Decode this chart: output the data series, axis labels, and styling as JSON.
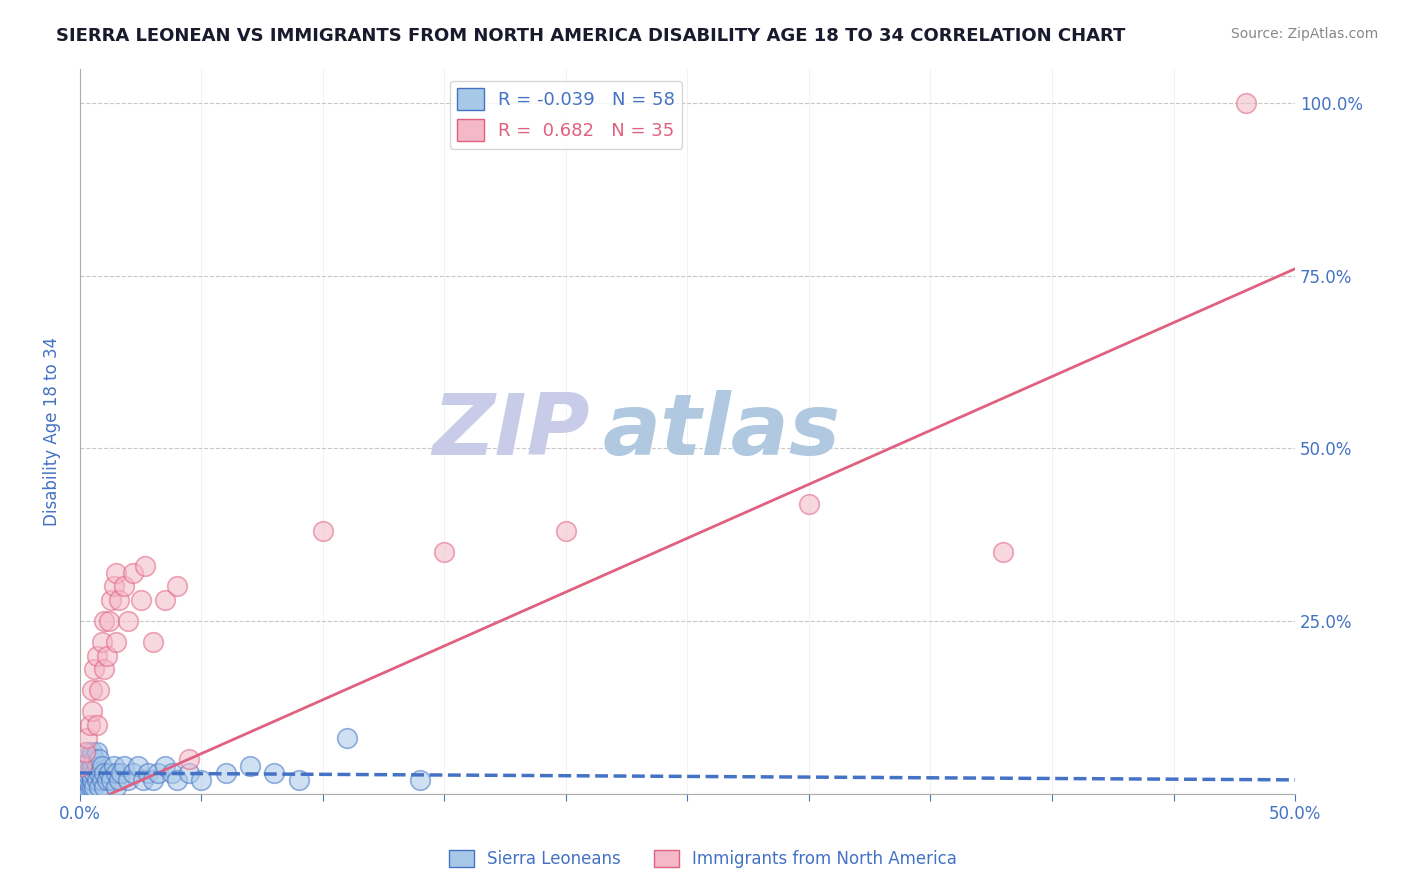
{
  "title": "SIERRA LEONEAN VS IMMIGRANTS FROM NORTH AMERICA DISABILITY AGE 18 TO 34 CORRELATION CHART",
  "source": "Source: ZipAtlas.com",
  "xlabel": "",
  "ylabel": "Disability Age 18 to 34",
  "xlim": [
    0.0,
    0.5
  ],
  "ylim": [
    0.0,
    1.05
  ],
  "yticks": [
    0.0,
    0.25,
    0.5,
    0.75,
    1.0
  ],
  "ytick_labels": [
    "",
    "25.0%",
    "50.0%",
    "75.0%",
    "100.0%"
  ],
  "xticks": [
    0.0,
    0.05,
    0.1,
    0.15,
    0.2,
    0.25,
    0.3,
    0.35,
    0.4,
    0.45,
    0.5
  ],
  "xtick_labels": [
    "0.0%",
    "",
    "",
    "",
    "",
    "",
    "",
    "",
    "",
    "",
    "50.0%"
  ],
  "blue_R": -0.039,
  "blue_N": 58,
  "pink_R": 0.682,
  "pink_N": 35,
  "blue_color": "#a8c8e8",
  "pink_color": "#f4b8c8",
  "blue_line_color": "#4472c4",
  "pink_line_color": "#e06080",
  "grid_color": "#c8c8c8",
  "title_color": "#1a1a2e",
  "tick_label_color": "#4472c4",
  "watermark_zip": "ZIP",
  "watermark_atlas": "atlas",
  "watermark_color_zip": "#c8cce8",
  "watermark_color_atlas": "#b0c8e0",
  "legend_label_blue": "Sierra Leoneans",
  "legend_label_pink": "Immigrants from North America",
  "blue_scatter_x": [
    0.001,
    0.001,
    0.001,
    0.002,
    0.002,
    0.002,
    0.002,
    0.003,
    0.003,
    0.003,
    0.003,
    0.004,
    0.004,
    0.004,
    0.005,
    0.005,
    0.005,
    0.005,
    0.006,
    0.006,
    0.006,
    0.007,
    0.007,
    0.007,
    0.008,
    0.008,
    0.008,
    0.009,
    0.009,
    0.01,
    0.01,
    0.011,
    0.012,
    0.013,
    0.014,
    0.015,
    0.015,
    0.016,
    0.017,
    0.018,
    0.02,
    0.022,
    0.024,
    0.026,
    0.028,
    0.03,
    0.032,
    0.035,
    0.038,
    0.04,
    0.045,
    0.05,
    0.06,
    0.07,
    0.08,
    0.09,
    0.11,
    0.14
  ],
  "blue_scatter_y": [
    0.01,
    0.02,
    0.03,
    0.01,
    0.02,
    0.04,
    0.05,
    0.01,
    0.02,
    0.03,
    0.06,
    0.01,
    0.03,
    0.05,
    0.01,
    0.02,
    0.04,
    0.06,
    0.01,
    0.03,
    0.05,
    0.02,
    0.04,
    0.06,
    0.01,
    0.03,
    0.05,
    0.02,
    0.04,
    0.01,
    0.03,
    0.02,
    0.03,
    0.02,
    0.04,
    0.01,
    0.03,
    0.02,
    0.03,
    0.04,
    0.02,
    0.03,
    0.04,
    0.02,
    0.03,
    0.02,
    0.03,
    0.04,
    0.03,
    0.02,
    0.03,
    0.02,
    0.03,
    0.04,
    0.03,
    0.02,
    0.08,
    0.02
  ],
  "pink_scatter_x": [
    0.001,
    0.002,
    0.003,
    0.004,
    0.005,
    0.005,
    0.006,
    0.007,
    0.007,
    0.008,
    0.009,
    0.01,
    0.01,
    0.011,
    0.012,
    0.013,
    0.014,
    0.015,
    0.015,
    0.016,
    0.018,
    0.02,
    0.022,
    0.025,
    0.027,
    0.03,
    0.035,
    0.04,
    0.045,
    0.1,
    0.15,
    0.2,
    0.3,
    0.38,
    0.48
  ],
  "pink_scatter_y": [
    0.04,
    0.06,
    0.08,
    0.1,
    0.12,
    0.15,
    0.18,
    0.1,
    0.2,
    0.15,
    0.22,
    0.18,
    0.25,
    0.2,
    0.25,
    0.28,
    0.3,
    0.22,
    0.32,
    0.28,
    0.3,
    0.25,
    0.32,
    0.28,
    0.33,
    0.22,
    0.28,
    0.3,
    0.05,
    0.38,
    0.35,
    0.38,
    0.42,
    0.35,
    1.0
  ],
  "pink_line_x0": 0.0,
  "pink_line_y0": -0.02,
  "pink_line_x1": 0.5,
  "pink_line_y1": 0.76,
  "blue_line_x0": 0.0,
  "blue_line_y0": 0.03,
  "blue_line_x1": 0.5,
  "blue_line_y1": 0.02
}
